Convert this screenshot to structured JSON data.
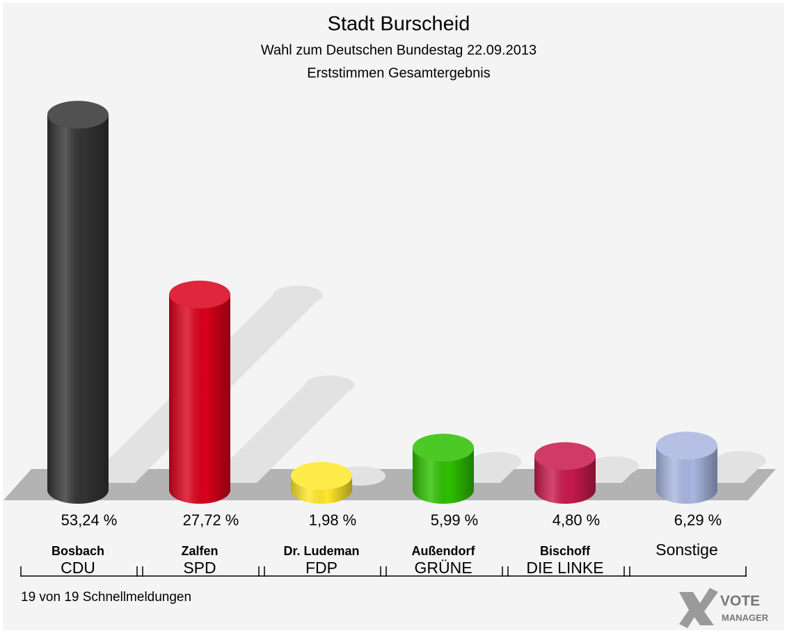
{
  "chart_data": {
    "type": "bar",
    "title": "Stadt Burscheid",
    "subtitles": [
      "Wahl zum Deutschen Bundestag 22.09.2013",
      "Erststimmen Gesamtergebnis"
    ],
    "categories": [
      "CDU",
      "SPD",
      "FDP",
      "GRÜNE",
      "DIE LINKE",
      "Sonstige"
    ],
    "candidates": [
      "Bosbach",
      "Zalfen",
      "Dr. Ludeman",
      "Außendorf",
      "Bischoff",
      null
    ],
    "values": [
      53.24,
      27.72,
      1.98,
      5.99,
      4.8,
      6.29
    ],
    "value_labels": [
      "53,24 %",
      "27,72 %",
      "1,98 %",
      "5,99 %",
      "4,80 %",
      "6,29 %"
    ],
    "colors": [
      "#333333",
      "#d9001b",
      "#ffe82a",
      "#2ec000",
      "#c8194c",
      "#a8b6e0"
    ],
    "note": "19 von 19 Schnellmeldungen",
    "logo": [
      "VOTE",
      "MANAGER"
    ]
  }
}
